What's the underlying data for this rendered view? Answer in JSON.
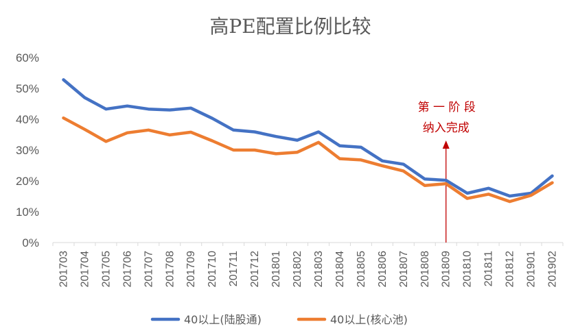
{
  "chart_data": {
    "type": "line",
    "title": "高PE配置比例比较",
    "y_ticks": [
      "0%",
      "10%",
      "20%",
      "30%",
      "40%",
      "50%",
      "60%"
    ],
    "ylim": [
      0,
      60
    ],
    "grid": false,
    "legend_position": "bottom",
    "categories": [
      "201703",
      "201704",
      "201705",
      "201706",
      "201707",
      "201708",
      "201709",
      "201710",
      "201711",
      "201712",
      "201801",
      "201802",
      "201803",
      "201804",
      "201805",
      "201806",
      "201807",
      "201808",
      "201809",
      "201810",
      "201811",
      "201812",
      "201901",
      "201902"
    ],
    "series": [
      {
        "name": "40以上(陆股通)",
        "color": "#4472c4",
        "values": [
          52.8,
          47.0,
          43.3,
          44.3,
          43.3,
          43.0,
          43.6,
          40.3,
          36.5,
          35.9,
          34.4,
          33.2,
          35.9,
          31.4,
          30.9,
          26.5,
          25.4,
          20.6,
          20.2,
          16.0,
          17.6,
          15.1,
          16.0,
          21.6
        ]
      },
      {
        "name": "40以上(核心池)",
        "color": "#ed7d31",
        "values": [
          40.4,
          36.7,
          32.8,
          35.6,
          36.5,
          34.9,
          35.8,
          33.0,
          30.0,
          30.0,
          28.8,
          29.3,
          32.5,
          27.2,
          26.8,
          24.9,
          23.2,
          18.5,
          19.1,
          14.3,
          15.7,
          13.3,
          15.3,
          19.4
        ]
      }
    ],
    "annotation": {
      "line1": "第 一 阶 段",
      "line2": "纳入完成",
      "category": "201809",
      "color": "#c00000"
    }
  }
}
